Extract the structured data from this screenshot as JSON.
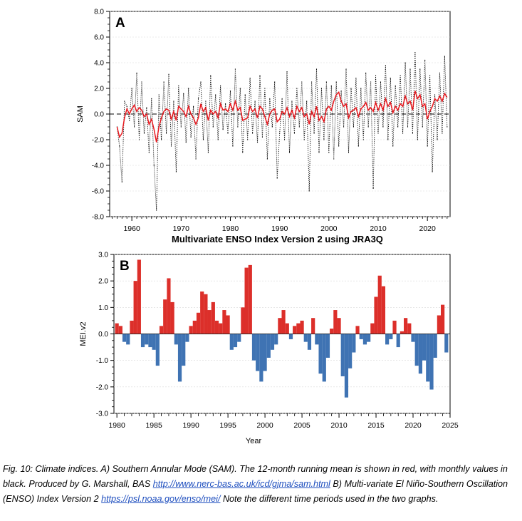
{
  "chart_data": [
    {
      "type": "line",
      "panel_label": "A",
      "ylabel": "SAM",
      "xlabel": "",
      "xlim": [
        1955.5,
        2024.6
      ],
      "ylim": [
        -8.0,
        8.0
      ],
      "yticks": [
        "8.0",
        "6.0",
        "4.0",
        "2.0",
        "0.0",
        "-2.0",
        "-4.0",
        "-6.0",
        "-8.0"
      ],
      "ytick_values": [
        8,
        6,
        4,
        2,
        0,
        -2,
        -4,
        -6,
        -8
      ],
      "xticks": [
        "1960",
        "1970",
        "1980",
        "1990",
        "2000",
        "2010",
        "2020"
      ],
      "xtick_values": [
        1960,
        1970,
        1980,
        1990,
        2000,
        2010,
        2020
      ],
      "zero_line": "dashed",
      "colors": {
        "monthly": "#000000",
        "running_mean": "#e8191f"
      },
      "series": [
        {
          "style": "dotted-black",
          "x": [
            1957.0,
            1957.5,
            1958.0,
            1958.5,
            1959.0,
            1959.5,
            1960.0,
            1960.5,
            1961.0,
            1961.5,
            1962.0,
            1962.5,
            1963.0,
            1963.5,
            1964.0,
            1964.5,
            1965.0,
            1965.5,
            1966.0,
            1966.5,
            1967.0,
            1967.5,
            1968.0,
            1968.5,
            1969.0,
            1969.5,
            1970.0,
            1970.5,
            1971.0,
            1971.5,
            1972.0,
            1972.5,
            1973.0,
            1973.5,
            1974.0,
            1974.5,
            1975.0,
            1975.5,
            1976.0,
            1976.5,
            1977.0,
            1977.5,
            1978.0,
            1978.5,
            1979.0,
            1979.5,
            1980.0,
            1980.5,
            1981.0,
            1981.5,
            1982.0,
            1982.5,
            1983.0,
            1983.5,
            1984.0,
            1984.5,
            1985.0,
            1985.5,
            1986.0,
            1986.5,
            1987.0,
            1987.5,
            1988.0,
            1988.5,
            1989.0,
            1989.5,
            1990.0,
            1990.5,
            1991.0,
            1991.5,
            1992.0,
            1992.5,
            1993.0,
            1993.5,
            1994.0,
            1994.5,
            1995.0,
            1995.5,
            1996.0,
            1996.5,
            1997.0,
            1997.5,
            1998.0,
            1998.5,
            1999.0,
            1999.5,
            2000.0,
            2000.5,
            2001.0,
            2001.5,
            2002.0,
            2002.5,
            2003.0,
            2003.5,
            2004.0,
            2004.5,
            2005.0,
            2005.5,
            2006.0,
            2006.5,
            2007.0,
            2007.5,
            2008.0,
            2008.5,
            2009.0,
            2009.5,
            2010.0,
            2010.5,
            2011.0,
            2011.5,
            2012.0,
            2012.5,
            2013.0,
            2013.5,
            2014.0,
            2014.5,
            2015.0,
            2015.5,
            2016.0,
            2016.5,
            2017.0,
            2017.5,
            2018.0,
            2018.5,
            2019.0,
            2019.5,
            2020.0,
            2020.5,
            2021.0,
            2021.5,
            2022.0,
            2022.5,
            2023.0,
            2023.5,
            2024.0
          ],
          "values": [
            -1.0,
            -2.5,
            -5.3,
            1.0,
            0.6,
            -0.5,
            2.0,
            -1.0,
            3.2,
            -2.0,
            2.5,
            -1.5,
            0.5,
            -3.0,
            1.2,
            -4.0,
            -7.5,
            1.5,
            -2.0,
            2.5,
            -1.5,
            3.1,
            -2.5,
            1.0,
            -4.5,
            2.2,
            -1.0,
            1.6,
            -2.2,
            2.0,
            -1.8,
            0.6,
            -3.5,
            1.2,
            2.5,
            -2.0,
            1.0,
            -3.0,
            3.0,
            -1.0,
            1.5,
            -2.0,
            2.2,
            -1.2,
            0.8,
            -1.5,
            1.8,
            -2.5,
            3.5,
            -1.0,
            2.0,
            -3.0,
            1.5,
            -2.0,
            2.8,
            -1.5,
            1.0,
            -2.2,
            3.0,
            -1.8,
            2.0,
            -3.5,
            1.2,
            -1.0,
            2.5,
            -5.0,
            -1.5,
            1.2,
            -2.0,
            3.3,
            -3.0,
            1.0,
            -1.5,
            2.0,
            -1.0,
            2.5,
            -2.0,
            1.0,
            -6.0,
            2.5,
            -1.5,
            3.5,
            -3.0,
            2.0,
            -2.0,
            2.5,
            -3.0,
            2.2,
            -3.5,
            2.5,
            -2.5,
            1.8,
            -1.0,
            3.5,
            -3.0,
            2.0,
            -1.0,
            2.8,
            -2.5,
            2.0,
            -2.0,
            3.2,
            -1.0,
            2.5,
            -5.8,
            3.0,
            -1.5,
            2.5,
            -1.0,
            3.8,
            -2.0,
            2.8,
            -2.5,
            2.2,
            -1.0,
            3.0,
            -1.5,
            4.0,
            -1.0,
            3.5,
            -1.5,
            4.8,
            -2.0,
            3.5,
            -1.0,
            4.2,
            -2.5,
            3.0,
            -4.5,
            1.5,
            -2.0,
            3.2,
            -1.5,
            4.5,
            -1.0
          ]
        },
        {
          "style": "solid-red",
          "x": [
            1957.0,
            1957.5,
            1958.0,
            1958.5,
            1959.0,
            1959.5,
            1960.0,
            1960.5,
            1961.0,
            1961.5,
            1962.0,
            1962.5,
            1963.0,
            1963.5,
            1964.0,
            1964.5,
            1965.0,
            1965.5,
            1966.0,
            1966.5,
            1967.0,
            1967.5,
            1968.0,
            1968.5,
            1969.0,
            1969.5,
            1970.0,
            1970.5,
            1971.0,
            1971.5,
            1972.0,
            1972.5,
            1973.0,
            1973.5,
            1974.0,
            1974.5,
            1975.0,
            1975.5,
            1976.0,
            1976.5,
            1977.0,
            1977.5,
            1978.0,
            1978.5,
            1979.0,
            1979.5,
            1980.0,
            1980.5,
            1981.0,
            1981.5,
            1982.0,
            1982.5,
            1983.0,
            1983.5,
            1984.0,
            1984.5,
            1985.0,
            1985.5,
            1986.0,
            1986.5,
            1987.0,
            1987.5,
            1988.0,
            1988.5,
            1989.0,
            1989.5,
            1990.0,
            1990.5,
            1991.0,
            1991.5,
            1992.0,
            1992.5,
            1993.0,
            1993.5,
            1994.0,
            1994.5,
            1995.0,
            1995.5,
            1996.0,
            1996.5,
            1997.0,
            1997.5,
            1998.0,
            1998.5,
            1999.0,
            1999.5,
            2000.0,
            2000.5,
            2001.0,
            2001.5,
            2002.0,
            2002.5,
            2003.0,
            2003.5,
            2004.0,
            2004.5,
            2005.0,
            2005.5,
            2006.0,
            2006.5,
            2007.0,
            2007.5,
            2008.0,
            2008.5,
            2009.0,
            2009.5,
            2010.0,
            2010.5,
            2011.0,
            2011.5,
            2012.0,
            2012.5,
            2013.0,
            2013.5,
            2014.0,
            2014.5,
            2015.0,
            2015.5,
            2016.0,
            2016.5,
            2017.0,
            2017.5,
            2018.0,
            2018.5,
            2019.0,
            2019.5,
            2020.0,
            2020.5,
            2021.0,
            2021.5,
            2022.0,
            2022.5,
            2023.0,
            2023.5,
            2024.0
          ],
          "values": [
            -1.0,
            -1.8,
            -1.5,
            -0.3,
            0.4,
            0.0,
            0.4,
            0.7,
            0.2,
            0.5,
            0.3,
            -0.2,
            0.0,
            -0.8,
            -0.4,
            -1.2,
            -2.2,
            -1.0,
            -0.3,
            0.2,
            0.4,
            0.3,
            -0.4,
            0.2,
            -0.5,
            0.6,
            0.4,
            0.2,
            -0.2,
            0.6,
            0.0,
            -0.3,
            -0.8,
            -0.3,
            0.8,
            0.2,
            0.5,
            -0.5,
            0.3,
            0.0,
            0.2,
            -0.3,
            0.8,
            0.3,
            0.4,
            0.2,
            0.8,
            0.3,
            1.0,
            0.3,
            0.5,
            -0.5,
            -0.4,
            -0.3,
            0.6,
            0.2,
            0.4,
            -0.3,
            0.6,
            0.4,
            -0.2,
            -0.8,
            0.0,
            0.3,
            0.4,
            -0.6,
            -0.4,
            0.2,
            0.0,
            0.5,
            -0.2,
            0.3,
            -0.3,
            0.6,
            0.2,
            0.5,
            -0.2,
            0.0,
            -0.8,
            0.2,
            -0.2,
            0.6,
            -0.5,
            -0.2,
            -0.6,
            0.4,
            0.6,
            0.3,
            1.0,
            1.5,
            1.7,
            1.0,
            0.6,
            0.8,
            -0.3,
            0.2,
            0.3,
            0.5,
            -0.2,
            0.4,
            0.6,
            0.9,
            0.3,
            0.5,
            0.2,
            0.9,
            0.3,
            0.8,
            0.3,
            1.2,
            0.6,
            0.9,
            0.1,
            0.6,
            0.3,
            0.8,
            0.6,
            1.4,
            0.8,
            1.0,
            0.3,
            1.8,
            1.2,
            1.5,
            0.6,
            0.8,
            -0.4,
            0.2,
            0.6,
            1.2,
            1.0,
            1.4,
            1.0,
            1.6,
            1.3
          ]
        }
      ]
    },
    {
      "type": "bar",
      "title": "Multivariate ENSO Index Version 2 using JRA3Q",
      "panel_label": "B",
      "ylabel": "MEI.v2",
      "xlabel": "Year",
      "xlim": [
        1979.6,
        2025.0
      ],
      "ylim": [
        -3.0,
        3.0
      ],
      "yticks": [
        "3.0",
        "2.0",
        "1.0",
        "0.0",
        "-1.0",
        "-2.0",
        "-3.0"
      ],
      "ytick_values": [
        3,
        2,
        1,
        0,
        -1,
        -2,
        -3
      ],
      "xticks": [
        "1980",
        "1985",
        "1990",
        "1995",
        "2000",
        "2005",
        "2010",
        "2015",
        "2020",
        "2025"
      ],
      "xtick_values": [
        1980,
        1985,
        1990,
        1995,
        2000,
        2005,
        2010,
        2015,
        2020,
        2025
      ],
      "colors": {
        "positive": "#dc2f2a",
        "negative": "#3f73b3"
      },
      "x": [
        1980.0,
        1980.5,
        1981.0,
        1981.5,
        1982.0,
        1982.5,
        1983.0,
        1983.5,
        1984.0,
        1984.5,
        1985.0,
        1985.5,
        1986.0,
        1986.5,
        1987.0,
        1987.5,
        1988.0,
        1988.5,
        1989.0,
        1989.5,
        1990.0,
        1990.5,
        1991.0,
        1991.5,
        1992.0,
        1992.5,
        1993.0,
        1993.5,
        1994.0,
        1994.5,
        1995.0,
        1995.5,
        1996.0,
        1996.5,
        1997.0,
        1997.5,
        1998.0,
        1998.5,
        1999.0,
        1999.5,
        2000.0,
        2000.5,
        2001.0,
        2001.5,
        2002.0,
        2002.5,
        2003.0,
        2003.5,
        2004.0,
        2004.5,
        2005.0,
        2005.5,
        2006.0,
        2006.5,
        2007.0,
        2007.5,
        2008.0,
        2008.5,
        2009.0,
        2009.5,
        2010.0,
        2010.5,
        2011.0,
        2011.5,
        2012.0,
        2012.5,
        2013.0,
        2013.5,
        2014.0,
        2014.5,
        2015.0,
        2015.5,
        2016.0,
        2016.5,
        2017.0,
        2017.5,
        2018.0,
        2018.5,
        2019.0,
        2019.5,
        2020.0,
        2020.5,
        2021.0,
        2021.5,
        2022.0,
        2022.5,
        2023.0,
        2023.5,
        2024.0,
        2024.5
      ],
      "values": [
        0.4,
        0.3,
        -0.3,
        -0.4,
        0.5,
        2.0,
        2.8,
        -0.5,
        -0.4,
        -0.5,
        -0.6,
        -1.2,
        0.3,
        1.3,
        2.1,
        1.2,
        -0.4,
        -1.8,
        -1.2,
        -0.3,
        0.3,
        0.5,
        0.8,
        1.6,
        1.5,
        0.9,
        1.2,
        0.5,
        0.4,
        0.9,
        0.7,
        -0.6,
        -0.5,
        -0.3,
        1.0,
        2.5,
        2.6,
        -1.0,
        -1.4,
        -1.8,
        -1.4,
        -0.9,
        -0.6,
        -0.4,
        0.6,
        0.9,
        0.4,
        -0.2,
        0.3,
        0.4,
        0.5,
        -0.3,
        -0.6,
        0.6,
        -0.4,
        -1.5,
        -1.8,
        -0.9,
        0.2,
        0.9,
        0.6,
        -1.6,
        -2.4,
        -1.3,
        -0.7,
        0.3,
        -0.2,
        -0.4,
        -0.3,
        0.4,
        1.4,
        2.2,
        1.8,
        -0.4,
        -0.2,
        0.5,
        -0.5,
        0.1,
        0.6,
        0.4,
        -0.3,
        -1.2,
        -1.5,
        -1.0,
        -1.8,
        -2.1,
        -0.9,
        0.7,
        1.1,
        -0.7
      ]
    }
  ],
  "caption": {
    "text_a": "Fig. 10: Climate indices. A) Southern Annular Mode (SAM). The 12-month running mean is shown in red, with monthly values in black. Produced by G. Marshall, BAS ",
    "link_1": "http://www.nerc-bas.ac.uk/icd/gjma/sam.html",
    "text_b": " B) Multi-variate El Niño-Southern Oscillation (ENSO) Index Version 2 ",
    "link_2": "https://psl.noaa.gov/enso/mei/",
    "text_c": " Note the different time periods used in the two graphs."
  }
}
